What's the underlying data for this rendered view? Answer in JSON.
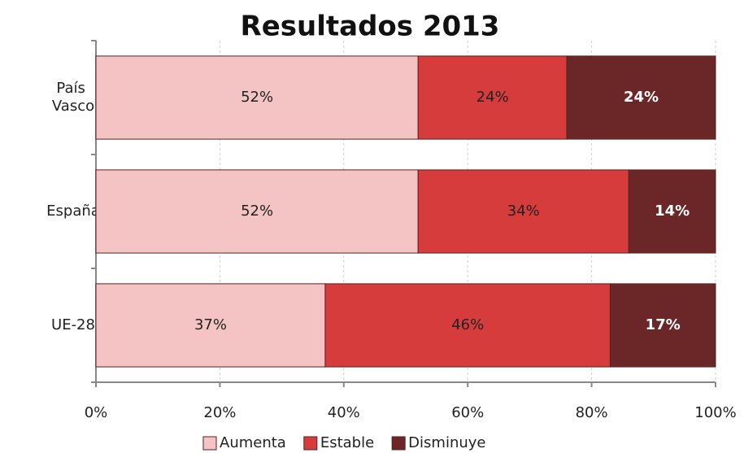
{
  "chart_data": {
    "type": "stacked_barh",
    "title": "Resultados 2013",
    "categories": [
      "País Vasco",
      "España",
      "UE-28"
    ],
    "series": [
      {
        "name": "Aumenta",
        "color": "#f4c4c4",
        "values": [
          52,
          52,
          37
        ],
        "value_labels": [
          "52%",
          "52%",
          "37%"
        ]
      },
      {
        "name": "Estable",
        "color": "#d63c3c",
        "values": [
          24,
          34,
          46
        ],
        "value_labels": [
          "24%",
          "34%",
          "46%"
        ]
      },
      {
        "name": "Disminuye",
        "color": "#6b2727",
        "values": [
          24,
          14,
          17
        ],
        "value_labels": [
          "24%",
          "14%",
          "17%"
        ]
      }
    ],
    "xlim": [
      0,
      100
    ],
    "xticks": [
      {
        "value": 0,
        "label": "0%"
      },
      {
        "value": 20,
        "label": "20%"
      },
      {
        "value": 40,
        "label": "40%"
      },
      {
        "value": 60,
        "label": "60%"
      },
      {
        "value": 80,
        "label": "80%"
      },
      {
        "value": 100,
        "label": "100%"
      }
    ],
    "grid": true,
    "legend": "bottom"
  }
}
